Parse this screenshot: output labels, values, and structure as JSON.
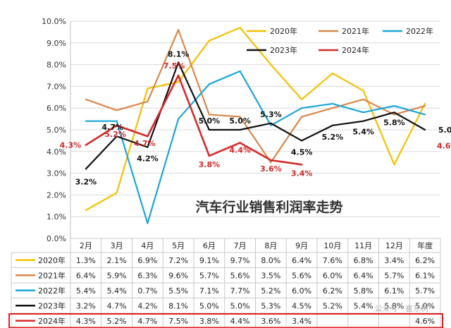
{
  "chart_data": {
    "type": "line",
    "title": "汽车行业销售利润率走势",
    "categories": [
      "2月",
      "3月",
      "4月",
      "5月",
      "6月",
      "7月",
      "8月",
      "9月",
      "10月",
      "11月",
      "12月",
      "年度"
    ],
    "ylim": [
      0,
      10
    ],
    "yticks": [
      "0.0%",
      "1.0%",
      "2.0%",
      "3.0%",
      "4.0%",
      "5.0%",
      "6.0%",
      "7.0%",
      "8.0%",
      "9.0%",
      "10.0%"
    ],
    "grid": true,
    "legend": "top-right",
    "series": [
      {
        "name": "2020年",
        "color": "#F5C000",
        "values": [
          1.3,
          2.1,
          6.9,
          7.2,
          9.1,
          9.7,
          8.0,
          6.4,
          7.6,
          6.8,
          3.4,
          6.2
        ],
        "table": [
          "1.3%",
          "2.1%",
          "6.9%",
          "7.2%",
          "9.1%",
          "9.7%",
          "8.0%",
          "6.4%",
          "7.6%",
          "6.8%",
          "3.4%",
          "6.2%"
        ]
      },
      {
        "name": "2021年",
        "color": "#D9874A",
        "values": [
          6.4,
          5.9,
          6.3,
          9.6,
          5.7,
          5.6,
          3.5,
          5.6,
          6.0,
          6.4,
          5.7,
          6.1
        ],
        "table": [
          "6.4%",
          "5.9%",
          "6.3%",
          "9.6%",
          "5.7%",
          "5.6%",
          "3.5%",
          "5.6%",
          "6.0%",
          "6.4%",
          "5.7%",
          "6.1%"
        ]
      },
      {
        "name": "2022年",
        "color": "#1AA7D8",
        "values": [
          5.4,
          5.4,
          0.7,
          5.5,
          7.1,
          7.7,
          5.2,
          6.0,
          6.2,
          5.8,
          6.1,
          5.7
        ],
        "table": [
          "5.4%",
          "5.4%",
          "0.7%",
          "5.5%",
          "7.1%",
          "7.7%",
          "5.2%",
          "6.0%",
          "6.2%",
          "5.8%",
          "6.1%",
          "5.7%"
        ]
      },
      {
        "name": "2023年",
        "color": "#111111",
        "values": [
          3.2,
          4.7,
          4.2,
          8.1,
          5.0,
          5.0,
          5.3,
          4.5,
          5.2,
          5.4,
          5.8,
          5.0
        ],
        "table": [
          "3.2%",
          "4.7%",
          "4.2%",
          "8.1%",
          "5.0%",
          "5.0%",
          "5.3%",
          "4.5%",
          "5.2%",
          "5.4%",
          "5.8%",
          "5.0%"
        ],
        "labels": [
          "3.2%",
          "4.7%",
          "4.2%",
          "8.1%",
          "5.0%",
          "5.0%",
          "5.3%",
          "4.5%",
          "5.2%",
          "5.4%",
          "5.8%",
          "5.0%"
        ]
      },
      {
        "name": "2024年",
        "color": "#D42A2A",
        "values": [
          4.3,
          5.2,
          4.7,
          7.5,
          3.8,
          4.4,
          3.6,
          3.4,
          null,
          null,
          null,
          4.6
        ],
        "table": [
          "4.3%",
          "5.2%",
          "4.7%",
          "7.5%",
          "3.8%",
          "4.4%",
          "3.6%",
          "3.4%",
          "",
          "",
          "",
          "4.6%"
        ],
        "labels": [
          "4.3%",
          "5.2%",
          "4.7%",
          "7.5%",
          "3.8%",
          "4.4%",
          "3.6%",
          "3.4%",
          "",
          "",
          "",
          "4.6%"
        ]
      }
    ]
  },
  "watermark": "公众号 · 崔东树"
}
